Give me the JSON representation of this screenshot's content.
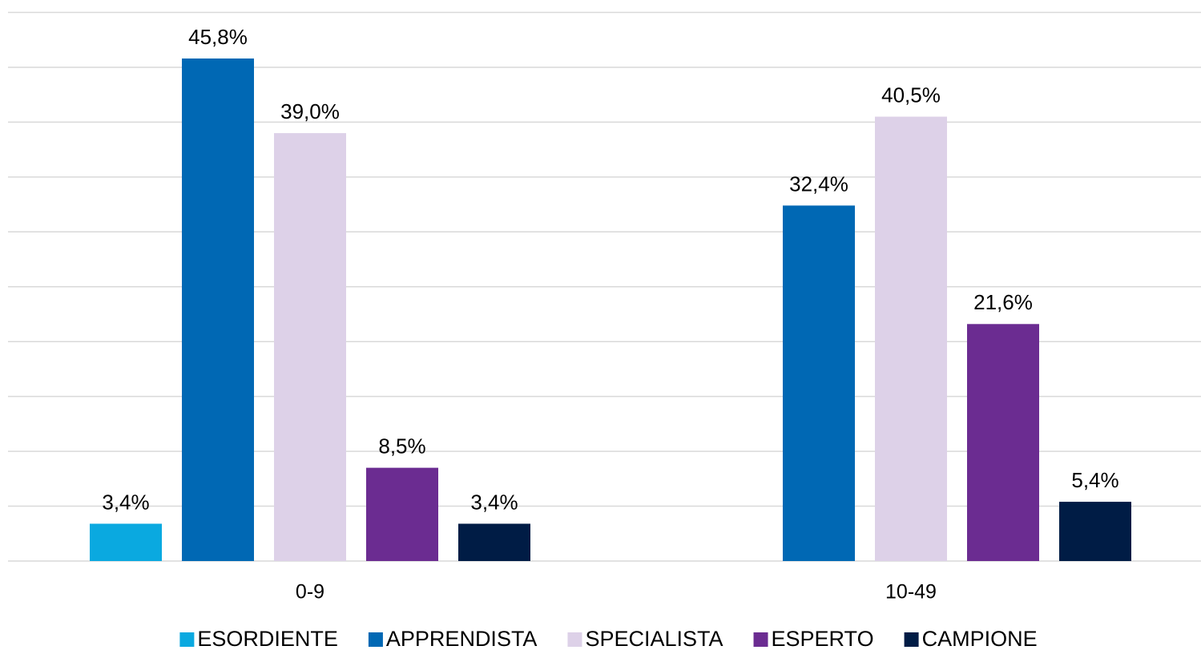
{
  "chart_data": {
    "type": "bar",
    "categories": [
      "0-9",
      "10-49"
    ],
    "series": [
      {
        "name": "ESORDIENTE",
        "color": "#0aa9e0",
        "values": [
          3.4,
          null
        ],
        "value_labels": [
          "3,4%",
          null
        ]
      },
      {
        "name": "APPRENDISTA",
        "color": "#0068b4",
        "values": [
          45.8,
          32.4
        ],
        "value_labels": [
          "45,8%",
          "32,4%"
        ]
      },
      {
        "name": "SPECIALISTA",
        "color": "#ddd1e8",
        "values": [
          39.0,
          40.5
        ],
        "value_labels": [
          "39,0%",
          "40,5%"
        ]
      },
      {
        "name": "ESPERTO",
        "color": "#6b2c91",
        "values": [
          8.5,
          21.6
        ],
        "value_labels": [
          "8,5%",
          "21,6%"
        ]
      },
      {
        "name": "CAMPIONE",
        "color": "#001c45",
        "values": [
          3.4,
          5.4
        ],
        "value_labels": [
          "3,4%",
          "5,4%"
        ]
      }
    ],
    "ylim": [
      0,
      50
    ],
    "yticks": [
      0,
      5,
      10,
      15,
      20,
      25,
      30,
      35,
      40,
      45,
      50
    ],
    "grid": true,
    "legend": "bottom"
  }
}
